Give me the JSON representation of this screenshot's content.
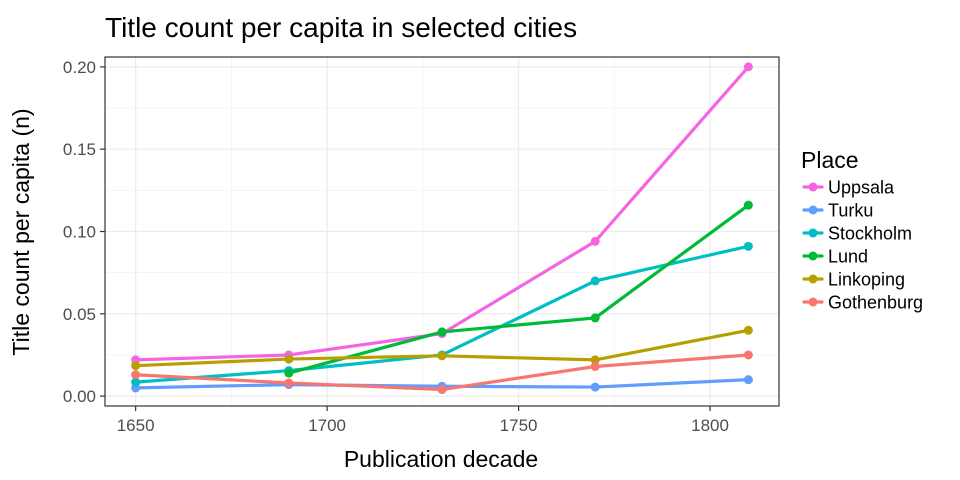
{
  "chart_data": {
    "type": "line",
    "title": "Title count per capita in selected cities",
    "xlabel": "Publication decade",
    "ylabel": "Title count per capita (n)",
    "xlim": [
      1642,
      1818
    ],
    "ylim": [
      -0.006,
      0.206
    ],
    "x_ticks": [
      1650,
      1700,
      1750,
      1800
    ],
    "y_ticks": [
      0.0,
      0.05,
      0.1,
      0.15,
      0.2
    ],
    "y_tick_labels": [
      "0.00",
      "0.05",
      "0.10",
      "0.15",
      "0.20"
    ],
    "grid": true,
    "legend": {
      "title": "Place",
      "position": "right"
    },
    "series": [
      {
        "name": "Uppsala",
        "color": "#f564e3",
        "x": [
          1650,
          1690,
          1730,
          1770,
          1810
        ],
        "y": [
          0.022,
          0.025,
          0.038,
          0.094,
          0.2
        ]
      },
      {
        "name": "Turku",
        "color": "#619cff",
        "x": [
          1650,
          1690,
          1730,
          1770,
          1810
        ],
        "y": [
          0.005,
          0.007,
          0.006,
          0.0055,
          0.01
        ]
      },
      {
        "name": "Stockholm",
        "color": "#00bfc4",
        "x": [
          1650,
          1690,
          1730,
          1770,
          1810
        ],
        "y": [
          0.0085,
          0.0155,
          0.025,
          0.07,
          0.091
        ]
      },
      {
        "name": "Lund",
        "color": "#00ba38",
        "x": [
          1690,
          1730,
          1770,
          1810
        ],
        "y": [
          0.014,
          0.039,
          0.0475,
          0.116
        ]
      },
      {
        "name": "Linkoping",
        "color": "#b79f00",
        "x": [
          1650,
          1690,
          1730,
          1770,
          1810
        ],
        "y": [
          0.0185,
          0.0225,
          0.0245,
          0.022,
          0.04
        ]
      },
      {
        "name": "Gothenburg",
        "color": "#f8766d",
        "x": [
          1650,
          1690,
          1730,
          1770,
          1810
        ],
        "y": [
          0.013,
          0.008,
          0.004,
          0.018,
          0.025
        ]
      }
    ]
  }
}
